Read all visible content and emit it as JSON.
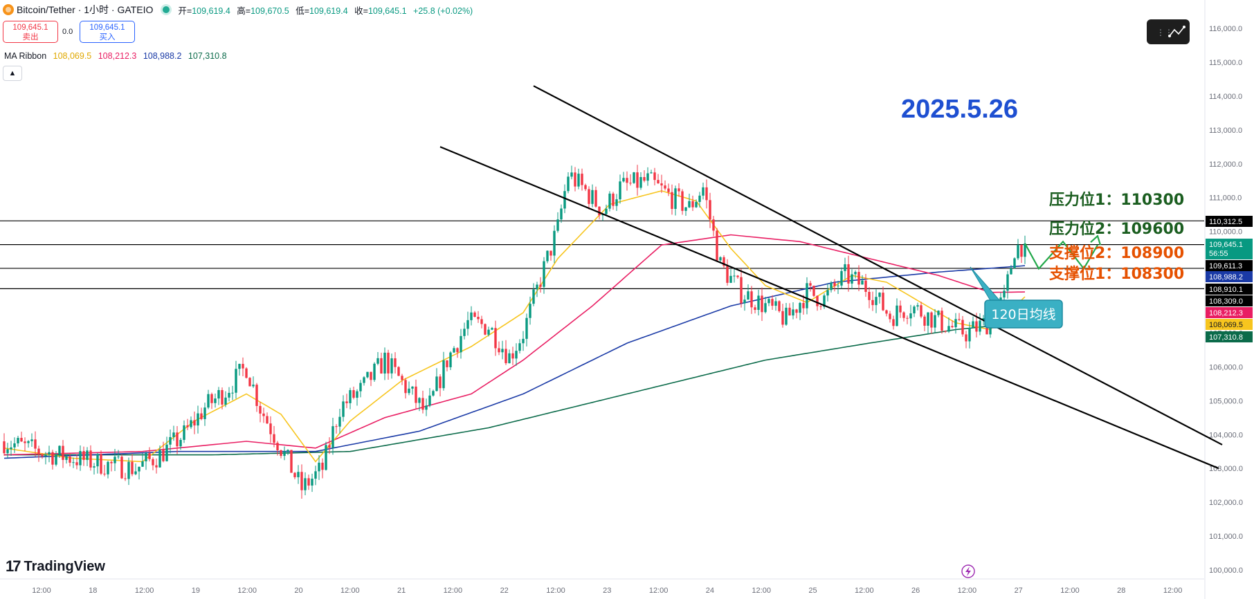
{
  "header": {
    "symbol": "Bitcoin/Tether · 1小时 · GATEIO",
    "open_label": "开",
    "open": "109,619.4",
    "high_label": "高",
    "high": "109,670.5",
    "low_label": "低",
    "low": "109,619.4",
    "close_label": "收",
    "close": "109,645.1",
    "change": "+25.8 (+0.02%)"
  },
  "trade": {
    "sell_price": "109,645.1",
    "sell_label": "卖出",
    "spread": "0.0",
    "buy_price": "109,645.1",
    "buy_label": "买入"
  },
  "indicator": {
    "name": "MA Ribbon",
    "values": [
      "108,069.5",
      "108,212.3",
      "108,988.2",
      "107,310.8"
    ]
  },
  "branding": {
    "name": "TradingView"
  },
  "colors": {
    "up": "#089981",
    "down": "#f23645",
    "ma1": "#f7c51e",
    "ma2": "#e91e63",
    "ma3": "#1a3aa6",
    "ma4": "#0b6b4a",
    "resistance_text": "#1b5e20",
    "support_text": "#e65100",
    "date_text": "#1e4fd1"
  },
  "chart_data": {
    "type": "candlestick",
    "title": "2025.5.26",
    "y_range": [
      100000,
      116000
    ],
    "y_ticks": [
      "116,000.0",
      "115,000.0",
      "114,000.0",
      "113,000.0",
      "112,000.0",
      "111,000.0",
      "110,000.0",
      "109,000.0",
      "108,000.0",
      "107,000.0",
      "106,000.0",
      "105,000.0",
      "104,000.0",
      "103,000.0",
      "102,000.0",
      "101,000.0",
      "100,000.0"
    ],
    "x_labels": [
      "12:00",
      "18",
      "12:00",
      "19",
      "12:00",
      "20",
      "12:00",
      "21",
      "12:00",
      "22",
      "12:00",
      "23",
      "12:00",
      "24",
      "12:00",
      "25",
      "12:00",
      "26",
      "12:00",
      "27",
      "12:00",
      "28",
      "12:00"
    ],
    "x_current_label": "12:00",
    "horizontal_levels": [
      110312.5,
      109611.3,
      108910.1,
      108309.0
    ],
    "price_tags": [
      {
        "text": "110,312.5",
        "value": 110312.5,
        "color": "#000000",
        "text_color": "#ffffff"
      },
      {
        "text": "109,645.1\n56:55",
        "value": 109645.1,
        "color": "#089981",
        "text_color": "#ffffff"
      },
      {
        "text": "109,611.3",
        "value": 109611.3,
        "color": "#000000",
        "text_color": "#ffffff"
      },
      {
        "text": "108,988.2",
        "value": 108988.2,
        "color": "#1a3aa6",
        "text_color": "#ffffff"
      },
      {
        "text": "108,910.1",
        "value": 108910.1,
        "color": "#000000",
        "text_color": "#ffffff"
      },
      {
        "text": "108,309.0",
        "value": 108309.0,
        "color": "#000000",
        "text_color": "#ffffff"
      },
      {
        "text": "108,212.3",
        "value": 108212.3,
        "color": "#e91e63",
        "text_color": "#ffffff"
      },
      {
        "text": "108,069.5",
        "value": 108069.5,
        "color": "#f7c51e",
        "text_color": "#131722"
      },
      {
        "text": "107,310.8",
        "value": 107310.8,
        "color": "#0b6b4a",
        "text_color": "#ffffff"
      }
    ],
    "level_labels": [
      {
        "text": "压力位1：110300",
        "kind": "resistance"
      },
      {
        "text": "压力位2：109600",
        "kind": "resistance"
      },
      {
        "text": "支撑位2：108900",
        "kind": "support"
      },
      {
        "text": "支撑位1：108300",
        "kind": "support"
      }
    ],
    "callout": "120日均线",
    "candle_anchors": [
      [
        0,
        103800
      ],
      [
        10,
        103500
      ],
      [
        20,
        103300
      ],
      [
        30,
        103100
      ],
      [
        38,
        103000
      ],
      [
        45,
        103400
      ],
      [
        52,
        104000
      ],
      [
        58,
        104800
      ],
      [
        64,
        105300
      ],
      [
        70,
        106000
      ],
      [
        74,
        104800
      ],
      [
        80,
        103600
      ],
      [
        86,
        102400
      ],
      [
        92,
        103000
      ],
      [
        97,
        104800
      ],
      [
        103,
        105300
      ],
      [
        110,
        106200
      ],
      [
        116,
        105400
      ],
      [
        122,
        104600
      ],
      [
        128,
        106200
      ],
      [
        134,
        107300
      ],
      [
        140,
        107200
      ],
      [
        146,
        106300
      ],
      [
        150,
        107000
      ],
      [
        155,
        108600
      ],
      [
        160,
        110100
      ],
      [
        163,
        111700
      ],
      [
        168,
        111200
      ],
      [
        173,
        110600
      ],
      [
        178,
        111300
      ],
      [
        186,
        111500
      ],
      [
        193,
        111000
      ],
      [
        198,
        110700
      ],
      [
        202,
        111300
      ],
      [
        207,
        109000
      ],
      [
        213,
        108200
      ],
      [
        220,
        107800
      ],
      [
        226,
        107400
      ],
      [
        232,
        108200
      ],
      [
        237,
        108000
      ],
      [
        243,
        108700
      ],
      [
        250,
        108300
      ],
      [
        256,
        107500
      ],
      [
        262,
        107800
      ],
      [
        267,
        107500
      ],
      [
        273,
        107200
      ],
      [
        278,
        107000
      ],
      [
        284,
        107300
      ],
      [
        289,
        108000
      ],
      [
        292,
        109500
      ],
      [
        295,
        109645
      ]
    ],
    "ma_series": {
      "MA1": [
        [
          0,
          103600
        ],
        [
          20,
          103300
        ],
        [
          40,
          103200
        ],
        [
          55,
          104400
        ],
        [
          70,
          105200
        ],
        [
          80,
          104600
        ],
        [
          90,
          103200
        ],
        [
          100,
          104400
        ],
        [
          115,
          105600
        ],
        [
          135,
          106600
        ],
        [
          150,
          107600
        ],
        [
          160,
          109200
        ],
        [
          175,
          110800
        ],
        [
          190,
          111200
        ],
        [
          200,
          110900
        ],
        [
          210,
          109500
        ],
        [
          220,
          108400
        ],
        [
          232,
          107900
        ],
        [
          245,
          108700
        ],
        [
          255,
          108500
        ],
        [
          265,
          107900
        ],
        [
          275,
          107300
        ],
        [
          285,
          107100
        ],
        [
          295,
          108070
        ]
      ],
      "MA2": [
        [
          0,
          103400
        ],
        [
          40,
          103500
        ],
        [
          70,
          103800
        ],
        [
          90,
          103600
        ],
        [
          110,
          104500
        ],
        [
          135,
          105200
        ],
        [
          150,
          106200
        ],
        [
          170,
          107800
        ],
        [
          190,
          109600
        ],
        [
          210,
          109900
        ],
        [
          230,
          109700
        ],
        [
          250,
          109200
        ],
        [
          270,
          108700
        ],
        [
          285,
          108200
        ],
        [
          295,
          108212
        ]
      ],
      "MA3": [
        [
          0,
          103300
        ],
        [
          50,
          103500
        ],
        [
          90,
          103500
        ],
        [
          120,
          104100
        ],
        [
          150,
          105200
        ],
        [
          180,
          106700
        ],
        [
          210,
          107800
        ],
        [
          240,
          108500
        ],
        [
          270,
          108800
        ],
        [
          295,
          108988
        ]
      ],
      "MA4": [
        [
          0,
          103400
        ],
        [
          60,
          103400
        ],
        [
          100,
          103500
        ],
        [
          140,
          104200
        ],
        [
          180,
          105200
        ],
        [
          220,
          106200
        ],
        [
          250,
          106700
        ],
        [
          275,
          107100
        ],
        [
          295,
          107311
        ]
      ]
    },
    "trendlines": [
      [
        [
          153,
          114300
        ],
        [
          352,
          103700
        ]
      ],
      [
        [
          126,
          112500
        ],
        [
          351,
          103000
        ]
      ]
    ],
    "projection": [
      [
        295,
        109645
      ],
      [
        299,
        108900
      ],
      [
        306,
        109700
      ],
      [
        312,
        108900
      ],
      [
        316,
        109600
      ]
    ]
  }
}
